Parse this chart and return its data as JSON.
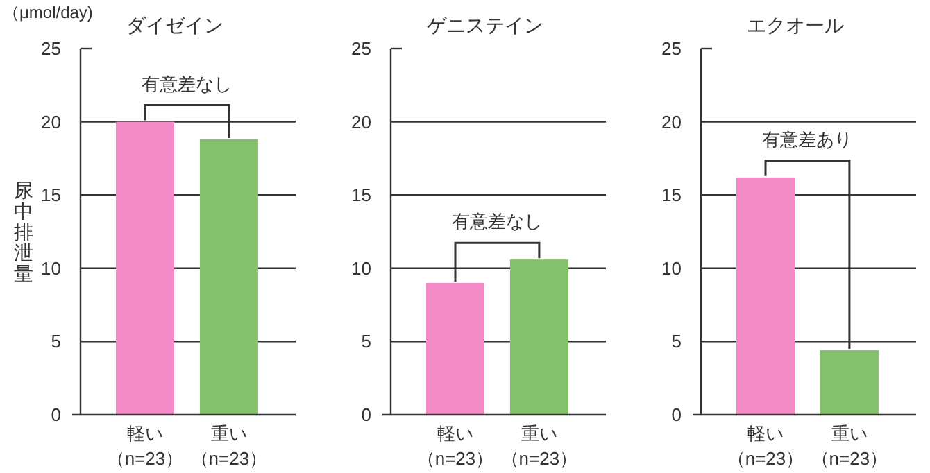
{
  "chart_data": [
    {
      "type": "bar",
      "title": "ダイゼイン",
      "ylabel": "尿中排泄量",
      "categories": [
        "軽い（n=23）",
        "重い（n=23）"
      ],
      "values": [
        20.0,
        18.8
      ],
      "colors": [
        "#f38ac6",
        "#85c06c"
      ],
      "ylim": [
        0,
        25
      ],
      "yticks": [
        0,
        5,
        10,
        15,
        20,
        25
      ],
      "grid": "y",
      "annotations": [
        "有意差なし",
        "（μmol/day)"
      ]
    },
    {
      "type": "bar",
      "title": "ゲニステイン",
      "categories": [
        "軽い（n=23）",
        "重い（n=23）"
      ],
      "values": [
        9.0,
        10.6
      ],
      "colors": [
        "#f38ac6",
        "#85c06c"
      ],
      "ylim": [
        0,
        25
      ],
      "yticks": [
        0,
        5,
        10,
        15,
        20,
        25
      ],
      "grid": "y",
      "annotations": [
        "有意差なし"
      ]
    },
    {
      "type": "bar",
      "title": "エクオール",
      "categories": [
        "軽い（n=23）",
        "重い（n=23）"
      ],
      "values": [
        16.2,
        4.4
      ],
      "colors": [
        "#f38ac6",
        "#85c06c"
      ],
      "ylim": [
        0,
        25
      ],
      "yticks": [
        0,
        5,
        10,
        15,
        20,
        25
      ],
      "grid": "y",
      "annotations": [
        "有意差あり"
      ]
    }
  ]
}
